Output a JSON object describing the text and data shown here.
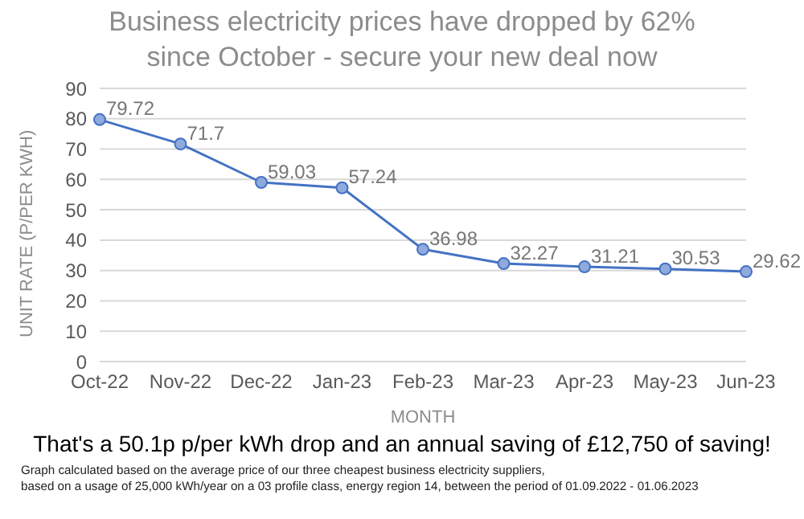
{
  "chart_data": {
    "type": "line",
    "title": "Business electricity prices have dropped by 62%\nsince October - secure your new deal now",
    "xlabel": "MONTH",
    "ylabel": "UNIT RATE (P/PER KWH)",
    "categories": [
      "Oct-22",
      "Nov-22",
      "Dec-22",
      "Jan-23",
      "Feb-23",
      "Mar-23",
      "Apr-23",
      "May-23",
      "Jun-23"
    ],
    "series": [
      {
        "color": "#4472c4",
        "values": [
          79.72,
          71.7,
          59.03,
          57.24,
          36.98,
          32.27,
          31.21,
          30.53,
          29.62
        ]
      }
    ],
    "ylim": [
      0,
      90
    ],
    "yticks": [
      0,
      10,
      20,
      30,
      40,
      50,
      60,
      70,
      80,
      90
    ],
    "grid": "y",
    "marker": "circle",
    "line_style": "solid",
    "data_labels": true,
    "legend": false,
    "annotations": [
      "That's a 50.1p p/per kWh drop and an annual saving of £12,750 of saving!",
      "Graph calculated based on the average price of our three cheapest business electricity suppliers,",
      "based on a usage of 25,000 kWh/year on a 03 profile class, energy region 14, between the period of 01.09.2022 - 01.06.2023"
    ]
  }
}
